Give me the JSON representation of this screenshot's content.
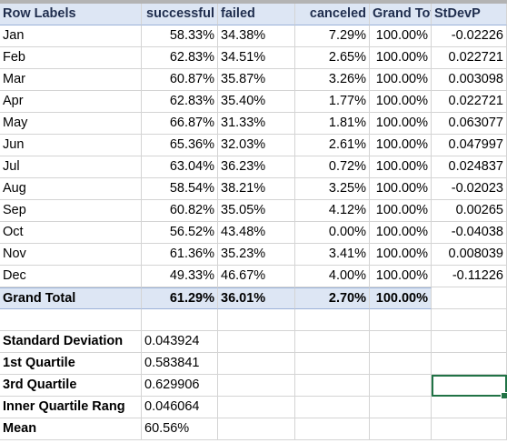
{
  "pivot": {
    "headers": {
      "row_labels": "Row Labels",
      "successful": "successful",
      "failed": "failed",
      "canceled": "canceled",
      "grand_total": "Grand Total",
      "stdevp": "StDevP"
    },
    "rows": [
      {
        "label": "Jan",
        "successful": "58.33%",
        "failed": "34.38%",
        "canceled": "7.29%",
        "grand_total": "100.00%",
        "stdevp": "-0.02226"
      },
      {
        "label": "Feb",
        "successful": "62.83%",
        "failed": "34.51%",
        "canceled": "2.65%",
        "grand_total": "100.00%",
        "stdevp": "0.022721"
      },
      {
        "label": "Mar",
        "successful": "60.87%",
        "failed": "35.87%",
        "canceled": "3.26%",
        "grand_total": "100.00%",
        "stdevp": "0.003098"
      },
      {
        "label": "Apr",
        "successful": "62.83%",
        "failed": "35.40%",
        "canceled": "1.77%",
        "grand_total": "100.00%",
        "stdevp": "0.022721"
      },
      {
        "label": "May",
        "successful": "66.87%",
        "failed": "31.33%",
        "canceled": "1.81%",
        "grand_total": "100.00%",
        "stdevp": "0.063077"
      },
      {
        "label": "Jun",
        "successful": "65.36%",
        "failed": "32.03%",
        "canceled": "2.61%",
        "grand_total": "100.00%",
        "stdevp": "0.047997"
      },
      {
        "label": "Jul",
        "successful": "63.04%",
        "failed": "36.23%",
        "canceled": "0.72%",
        "grand_total": "100.00%",
        "stdevp": "0.024837"
      },
      {
        "label": "Aug",
        "successful": "58.54%",
        "failed": "38.21%",
        "canceled": "3.25%",
        "grand_total": "100.00%",
        "stdevp": "-0.02023"
      },
      {
        "label": "Sep",
        "successful": "60.82%",
        "failed": "35.05%",
        "canceled": "4.12%",
        "grand_total": "100.00%",
        "stdevp": "0.00265"
      },
      {
        "label": "Oct",
        "successful": "56.52%",
        "failed": "43.48%",
        "canceled": "0.00%",
        "grand_total": "100.00%",
        "stdevp": "-0.04038"
      },
      {
        "label": "Nov",
        "successful": "61.36%",
        "failed": "35.23%",
        "canceled": "3.41%",
        "grand_total": "100.00%",
        "stdevp": "0.008039"
      },
      {
        "label": "Dec",
        "successful": "49.33%",
        "failed": "46.67%",
        "canceled": "4.00%",
        "grand_total": "100.00%",
        "stdevp": "-0.11226"
      }
    ],
    "total": {
      "label": "Grand Total",
      "successful": "61.29%",
      "failed": "36.01%",
      "canceled": "2.70%",
      "grand_total": "100.00%"
    }
  },
  "stats": [
    {
      "label": "Standard Deviation",
      "value": "0.043924"
    },
    {
      "label": "1st Quartile",
      "value": "0.583841"
    },
    {
      "label": "3rd Quartile",
      "value": "0.629906"
    },
    {
      "label": "Inner Quartile Rang",
      "value": "0.046064"
    },
    {
      "label": "Mean",
      "value": "60.56%"
    }
  ],
  "colors": {
    "header_fill": "#dde6f4",
    "selection": "#217346",
    "gridline": "#d4d4d4"
  }
}
